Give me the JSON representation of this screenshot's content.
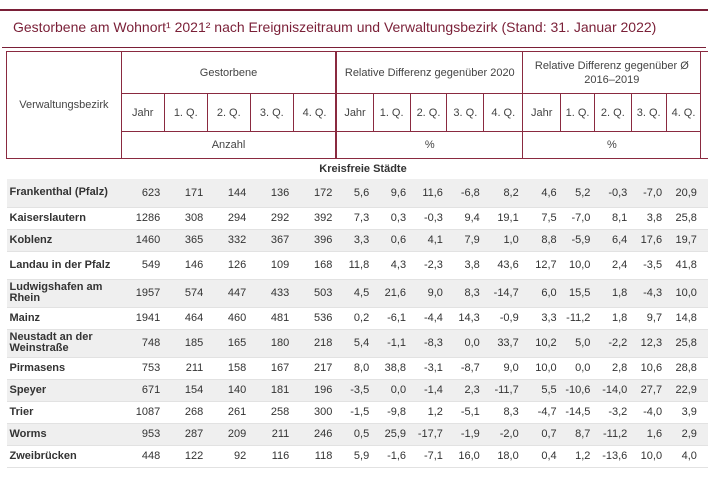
{
  "title": "Gestorbene am Wohnort¹ 2021² nach Ereigniszeitraum und Verwaltungsbezirk (Stand: 31. Januar 2022)",
  "header": {
    "row_label": "Verwaltungsbezirk",
    "groups": [
      "Gestorbene",
      "Relative Differenz gegenüber 2020",
      "Relative Differenz gegenüber Ø 2016–2019"
    ],
    "subcols": [
      "Jahr",
      "1. Q.",
      "2. Q.",
      "3. Q.",
      "4. Q."
    ],
    "units": [
      "Anzahl",
      "%",
      "%"
    ]
  },
  "section": "Kreisfreie Städte",
  "rows": [
    {
      "name": "Frankenthal (Pfalz)",
      "v": [
        "623",
        "171",
        "144",
        "136",
        "172",
        "5,6",
        "9,6",
        "11,6",
        "-6,8",
        "8,2",
        "4,6",
        "5,2",
        "-0,3",
        "-7,0",
        "20,9"
      ]
    },
    {
      "name": "Kaiserslautern",
      "v": [
        "1286",
        "308",
        "294",
        "292",
        "392",
        "7,3",
        "0,3",
        "-0,3",
        "9,4",
        "19,1",
        "7,5",
        "-7,0",
        "8,1",
        "3,8",
        "25,8"
      ]
    },
    {
      "name": "Koblenz",
      "v": [
        "1460",
        "365",
        "332",
        "367",
        "396",
        "3,3",
        "0,6",
        "4,1",
        "7,9",
        "1,0",
        "8,8",
        "-5,9",
        "6,4",
        "17,6",
        "19,7"
      ]
    },
    {
      "name": "Landau in der Pfalz",
      "v": [
        "549",
        "146",
        "126",
        "109",
        "168",
        "11,8",
        "4,3",
        "-2,3",
        "3,8",
        "43,6",
        "12,7",
        "10,0",
        "2,4",
        "-3,5",
        "41,8"
      ]
    },
    {
      "name": "Ludwigshafen am Rhein",
      "v": [
        "1957",
        "574",
        "447",
        "433",
        "503",
        "4,5",
        "21,6",
        "9,0",
        "8,3",
        "-14,7",
        "6,0",
        "15,5",
        "1,8",
        "-4,3",
        "10,0"
      ]
    },
    {
      "name": "Mainz",
      "v": [
        "1941",
        "464",
        "460",
        "481",
        "536",
        "0,2",
        "-6,1",
        "-4,4",
        "14,3",
        "-0,9",
        "3,3",
        "-11,2",
        "1,8",
        "9,7",
        "14,8"
      ]
    },
    {
      "name": "Neustadt an der Weinstraße",
      "v": [
        "748",
        "185",
        "165",
        "180",
        "218",
        "5,4",
        "-1,1",
        "-8,3",
        "0,0",
        "33,7",
        "10,2",
        "5,0",
        "-2,2",
        "12,3",
        "25,8"
      ]
    },
    {
      "name": "Pirmasens",
      "v": [
        "753",
        "211",
        "158",
        "167",
        "217",
        "8,0",
        "38,8",
        "-3,1",
        "-8,7",
        "9,0",
        "10,0",
        "0,0",
        "2,8",
        "10,6",
        "28,8"
      ]
    },
    {
      "name": "Speyer",
      "v": [
        "671",
        "154",
        "140",
        "181",
        "196",
        "-3,5",
        "0,0",
        "-1,4",
        "2,3",
        "-11,7",
        "5,5",
        "-10,6",
        "-14,0",
        "27,7",
        "22,9"
      ]
    },
    {
      "name": "Trier",
      "v": [
        "1087",
        "268",
        "261",
        "258",
        "300",
        "-1,5",
        "-9,8",
        "1,2",
        "-5,1",
        "8,3",
        "-4,7",
        "-14,5",
        "-3,2",
        "-4,0",
        "3,9"
      ]
    },
    {
      "name": "Worms",
      "v": [
        "953",
        "287",
        "209",
        "211",
        "246",
        "0,5",
        "25,9",
        "-17,7",
        "-1,9",
        "-2,0",
        "0,7",
        "8,7",
        "-11,2",
        "1,6",
        "2,9"
      ]
    },
    {
      "name": "Zweibrücken",
      "v": [
        "448",
        "122",
        "92",
        "116",
        "118",
        "5,9",
        "-1,6",
        "-7,1",
        "16,0",
        "18,0",
        "0,4",
        "1,2",
        "-13,6",
        "10,0",
        "4,0"
      ]
    }
  ]
}
